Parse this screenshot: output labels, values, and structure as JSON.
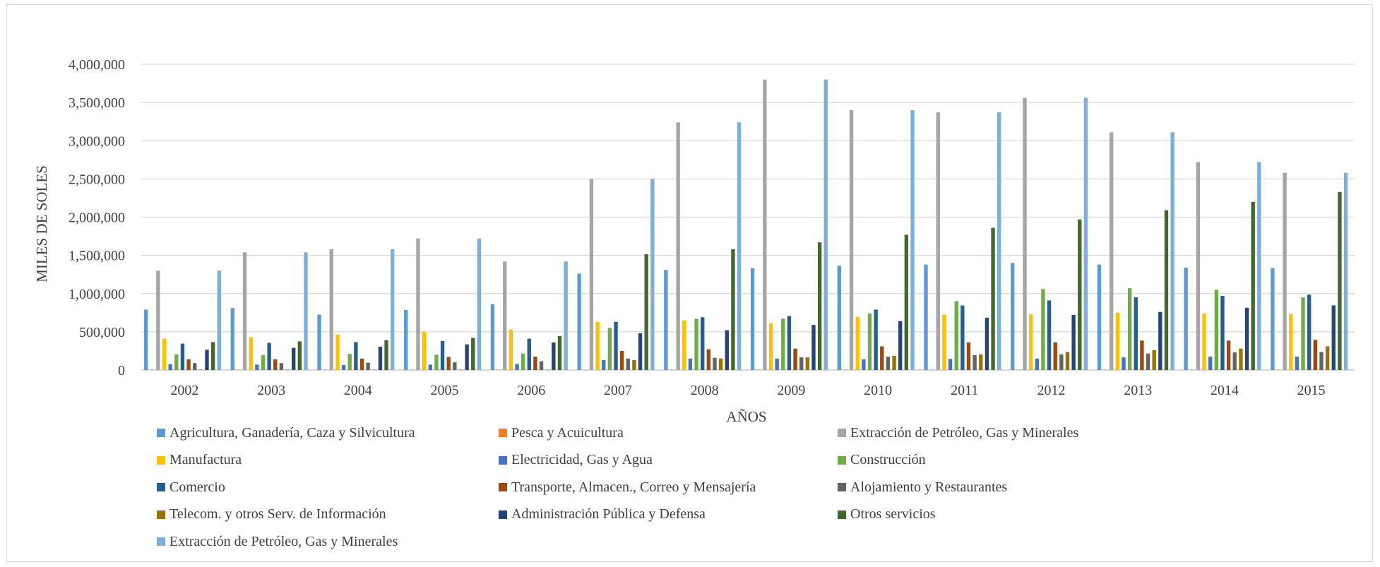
{
  "chart_data": {
    "type": "bar",
    "categories": [
      "2002",
      "2003",
      "2004",
      "2005",
      "2006",
      "2007",
      "2008",
      "2009",
      "2010",
      "2011",
      "2012",
      "2013",
      "2014",
      "2015"
    ],
    "xlabel": "AÑOS",
    "ylabel": "MILES  DE SOLES",
    "ylim": [
      0,
      4000000
    ],
    "yticks": [
      0,
      500000,
      1000000,
      1500000,
      2000000,
      2500000,
      3000000,
      3500000,
      4000000
    ],
    "ytick_labels": [
      "0",
      "500,000",
      "1,000,000",
      "1,500,000",
      "2,000,000",
      "2,500,000",
      "3,000,000",
      "3,500,000",
      "4,000,000"
    ],
    "grid": true,
    "legend_position": "bottom",
    "series": [
      {
        "name": "Agricultura, Ganadería, Caza y Silvicultura",
        "color": "#5b9bd5",
        "values": [
          790000,
          810000,
          725000,
          785000,
          860000,
          1260000,
          1310000,
          1330000,
          1365000,
          1380000,
          1400000,
          1380000,
          1340000,
          1335000
        ]
      },
      {
        "name": "Pesca y Acuicultura",
        "color": "#ed7d31",
        "values": [
          5000,
          5000,
          5000,
          5000,
          5000,
          5000,
          5000,
          5000,
          5000,
          5000,
          5000,
          5000,
          5000,
          5000
        ]
      },
      {
        "name": "Extracción de Petróleo, Gas y Minerales",
        "color": "#a5a5a5",
        "values": [
          1300000,
          1540000,
          1580000,
          1720000,
          1420000,
          2500000,
          3240000,
          3800000,
          3400000,
          3370000,
          3560000,
          3110000,
          2720000,
          2580000
        ]
      },
      {
        "name": "Manufactura",
        "color": "#ffc000",
        "values": [
          410000,
          430000,
          465000,
          500000,
          530000,
          630000,
          650000,
          610000,
          695000,
          725000,
          730000,
          750000,
          740000,
          730000
        ]
      },
      {
        "name": "Electricidad, Gas y Agua",
        "color": "#4472c4",
        "values": [
          75000,
          70000,
          65000,
          70000,
          80000,
          130000,
          150000,
          150000,
          140000,
          145000,
          150000,
          165000,
          175000,
          175000
        ]
      },
      {
        "name": "Construcción",
        "color": "#70ad47",
        "values": [
          205000,
          195000,
          210000,
          200000,
          215000,
          550000,
          670000,
          670000,
          740000,
          900000,
          1060000,
          1070000,
          1050000,
          950000
        ]
      },
      {
        "name": "Comercio",
        "color": "#255e91",
        "values": [
          345000,
          355000,
          365000,
          380000,
          410000,
          630000,
          690000,
          705000,
          790000,
          845000,
          910000,
          950000,
          970000,
          985000
        ]
      },
      {
        "name": "Transporte, Almacen., Correo y Mensajería",
        "color": "#9e480e",
        "values": [
          140000,
          140000,
          150000,
          170000,
          175000,
          250000,
          270000,
          280000,
          310000,
          360000,
          360000,
          385000,
          385000,
          395000
        ]
      },
      {
        "name": "Alojamiento y Restaurantes",
        "color": "#636363",
        "values": [
          90000,
          90000,
          95000,
          100000,
          115000,
          150000,
          160000,
          165000,
          175000,
          195000,
          205000,
          215000,
          230000,
          235000
        ]
      },
      {
        "name": "Telecom. y otros Serv. de Información",
        "color": "#997300",
        "values": [
          5000,
          5000,
          5000,
          5000,
          5000,
          130000,
          150000,
          165000,
          185000,
          205000,
          235000,
          260000,
          280000,
          310000
        ]
      },
      {
        "name": "Administración Pública y Defensa",
        "color": "#264478",
        "values": [
          265000,
          290000,
          305000,
          335000,
          360000,
          480000,
          520000,
          590000,
          640000,
          685000,
          720000,
          760000,
          815000,
          845000
        ]
      },
      {
        "name": "Otros servicios",
        "color": "#43682b",
        "values": [
          365000,
          375000,
          390000,
          420000,
          445000,
          1515000,
          1580000,
          1670000,
          1770000,
          1860000,
          1970000,
          2090000,
          2200000,
          2330000
        ]
      },
      {
        "name": "Extracción de Petróleo, Gas y Minerales",
        "color": "#7cafdd",
        "values": [
          1300000,
          1540000,
          1580000,
          1720000,
          1420000,
          2500000,
          3240000,
          3800000,
          3400000,
          3370000,
          3560000,
          3110000,
          2720000,
          2580000
        ]
      }
    ]
  }
}
